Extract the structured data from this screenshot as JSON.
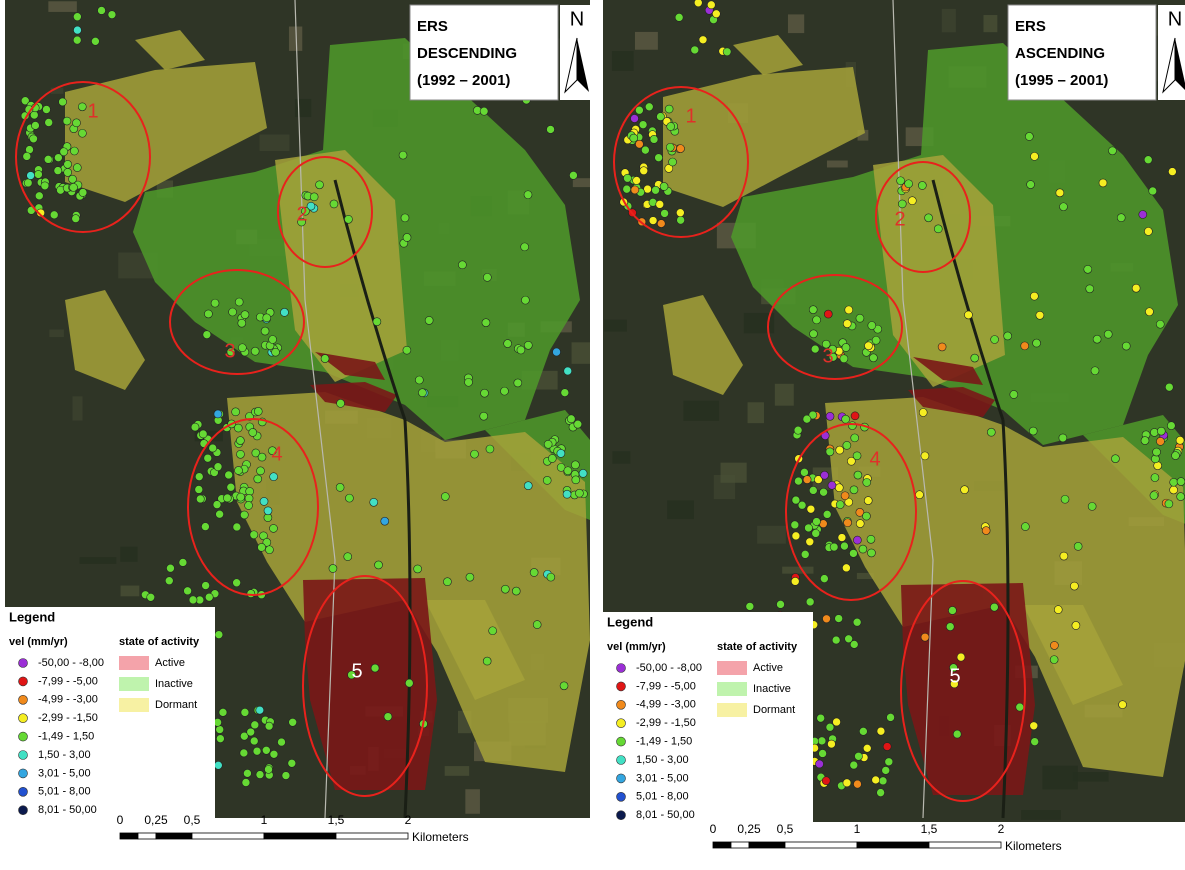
{
  "panels": [
    {
      "title": [
        "ERS",
        "DESCENDING",
        "(1992 – 2001)"
      ],
      "north": "N",
      "zones": [
        "1",
        "2",
        "3",
        "4",
        "5"
      ],
      "legend": {
        "title": "Legend",
        "vel_header": "vel (mm/yr)",
        "state_header": "state of activity",
        "vel_classes": [
          {
            "label": "-50,00 - -8,00",
            "color": "#9b2fd6"
          },
          {
            "label": "-7,99 - -5,00",
            "color": "#e01515"
          },
          {
            "label": "-4,99 - -3,00",
            "color": "#f08a1c"
          },
          {
            "label": "-2,99 - -1,50",
            "color": "#f5ee22"
          },
          {
            "label": "-1,49 - 1,50",
            "color": "#66d934"
          },
          {
            "label": "1,50 - 3,00",
            "color": "#42e0c4"
          },
          {
            "label": "3,01 - 5,00",
            "color": "#33a6e0"
          },
          {
            "label": "5,01 - 8,00",
            "color": "#2251d0"
          },
          {
            "label": "8,01 - 50,00",
            "color": "#0b1a4d"
          }
        ],
        "states": [
          {
            "label": "Active",
            "color": "#f4a3aa"
          },
          {
            "label": "Inactive",
            "color": "#bff3ad"
          },
          {
            "label": "Dormant",
            "color": "#f7f1a3"
          }
        ]
      },
      "scale": {
        "labels": [
          "0",
          "0,25",
          "0,5",
          "1",
          "1,5",
          "2"
        ],
        "unit": "Kilometers"
      }
    },
    {
      "title": [
        "ERS",
        "ASCENDING",
        "(1995 – 2001)"
      ],
      "north": "N",
      "zones": [
        "1",
        "2",
        "3",
        "4",
        "5"
      ],
      "legend": {
        "title": "Legend",
        "vel_header": "vel (mm/yr)",
        "state_header": "state of activity",
        "vel_classes": [
          {
            "label": "-50,00 - -8,00",
            "color": "#9b2fd6"
          },
          {
            "label": "-7,99 - -5,00",
            "color": "#e01515"
          },
          {
            "label": "-4,99 - -3,00",
            "color": "#f08a1c"
          },
          {
            "label": "-2,99 - -1,50",
            "color": "#f5ee22"
          },
          {
            "label": "-1,49 - 1,50",
            "color": "#66d934"
          },
          {
            "label": "1,50 - 3,00",
            "color": "#42e0c4"
          },
          {
            "label": "3,01 - 5,00",
            "color": "#33a6e0"
          },
          {
            "label": "5,01 - 8,00",
            "color": "#2251d0"
          },
          {
            "label": "8,01 - 50,00",
            "color": "#0b1a4d"
          }
        ],
        "states": [
          {
            "label": "Active",
            "color": "#f4a3aa"
          },
          {
            "label": "Inactive",
            "color": "#bff3ad"
          },
          {
            "label": "Dormant",
            "color": "#f7f1a3"
          }
        ]
      },
      "scale": {
        "labels": [
          "0",
          "0,25",
          "0,5",
          "1",
          "1,5",
          "2"
        ],
        "unit": "Kilometers"
      }
    }
  ]
}
